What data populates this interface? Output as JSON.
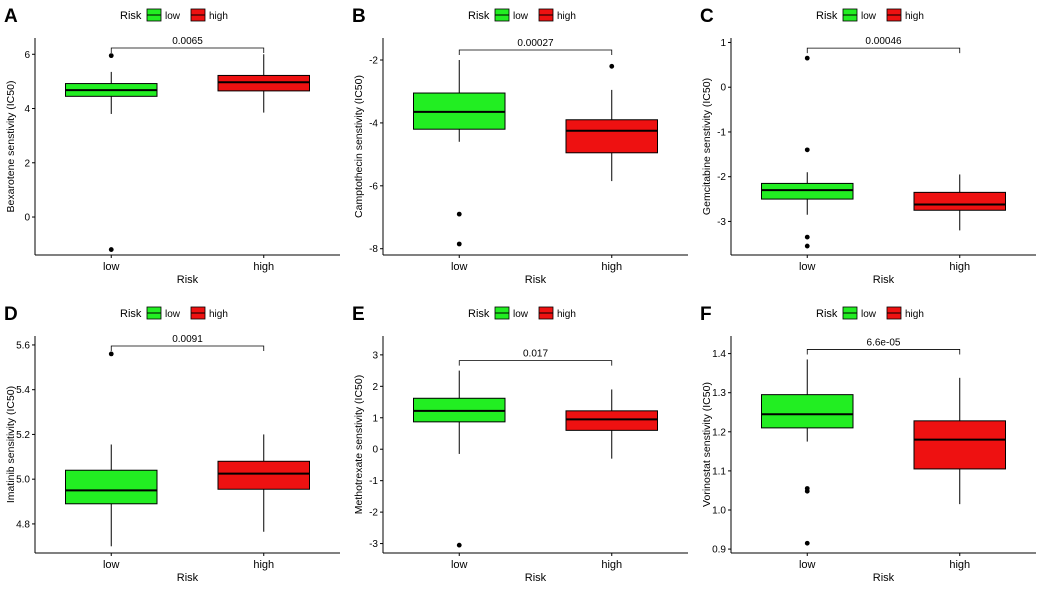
{
  "figure": {
    "legend_title": "Risk"
  },
  "colors": {
    "low": "#22ee22",
    "high": "#ee1111",
    "ink": "#000000"
  },
  "chart_data": [
    {
      "type": "box",
      "panel_label": "A",
      "ylabel": "Bexarotene senstivity (IC50)",
      "xlabel": "Risk",
      "categories": [
        "low",
        "high"
      ],
      "legend": [
        "low",
        "high"
      ],
      "ylim": [
        -1.4,
        6.6
      ],
      "yticks": [
        0,
        2,
        4,
        6
      ],
      "ytick_labels": [
        "0",
        "2",
        "4",
        "6"
      ],
      "p_value": "0.0065",
      "boxes": [
        {
          "name": "low",
          "whisker_low": 3.8,
          "q1": 4.45,
          "median": 4.68,
          "q3": 4.92,
          "whisker_high": 5.35,
          "outliers": [
            5.95,
            -1.2
          ]
        },
        {
          "name": "high",
          "whisker_low": 3.85,
          "q1": 4.65,
          "median": 4.97,
          "q3": 5.22,
          "whisker_high": 6.0,
          "outliers": []
        }
      ]
    },
    {
      "type": "box",
      "panel_label": "B",
      "ylabel": "Camptothecin senstivity (IC50)",
      "xlabel": "Risk",
      "categories": [
        "low",
        "high"
      ],
      "legend": [
        "low",
        "high"
      ],
      "ylim": [
        -8.2,
        -1.3
      ],
      "yticks": [
        -8,
        -6,
        -4,
        -2
      ],
      "ytick_labels": [
        "-8",
        "-6",
        "-4",
        "-2"
      ],
      "p_value": "0.00027",
      "boxes": [
        {
          "name": "low",
          "whisker_low": -4.6,
          "q1": -4.2,
          "median": -3.65,
          "q3": -3.05,
          "whisker_high": -2.0,
          "outliers": [
            -6.9,
            -7.85
          ]
        },
        {
          "name": "high",
          "whisker_low": -5.85,
          "q1": -4.95,
          "median": -4.25,
          "q3": -3.9,
          "whisker_high": -2.95,
          "outliers": [
            -2.2
          ]
        }
      ]
    },
    {
      "type": "box",
      "panel_label": "C",
      "ylabel": "Gemcitabine senstivity (IC50)",
      "xlabel": "Risk",
      "categories": [
        "low",
        "high"
      ],
      "legend": [
        "low",
        "high"
      ],
      "ylim": [
        -3.75,
        1.1
      ],
      "yticks": [
        -3,
        -2,
        -1,
        0,
        1
      ],
      "ytick_labels": [
        "-3",
        "-2",
        "-1",
        "0",
        "1"
      ],
      "p_value": "0.00046",
      "boxes": [
        {
          "name": "low",
          "whisker_low": -2.85,
          "q1": -2.5,
          "median": -2.3,
          "q3": -2.15,
          "whisker_high": -1.9,
          "outliers": [
            0.65,
            -1.4,
            -3.35,
            -3.55
          ]
        },
        {
          "name": "high",
          "whisker_low": -3.2,
          "q1": -2.75,
          "median": -2.62,
          "q3": -2.35,
          "whisker_high": -1.95,
          "outliers": []
        }
      ]
    },
    {
      "type": "box",
      "panel_label": "D",
      "ylabel": "Imatinib sensitivity (IC50)",
      "xlabel": "Risk",
      "categories": [
        "low",
        "high"
      ],
      "legend": [
        "low",
        "high"
      ],
      "ylim": [
        4.67,
        5.64
      ],
      "yticks": [
        4.8,
        5.0,
        5.2,
        5.4,
        5.6
      ],
      "ytick_labels": [
        "4.8",
        "5.0",
        "5.2",
        "5.4",
        "5.6"
      ],
      "p_value": "0.0091",
      "boxes": [
        {
          "name": "low",
          "whisker_low": 4.7,
          "q1": 4.89,
          "median": 4.95,
          "q3": 5.04,
          "whisker_high": 5.155,
          "outliers": [
            5.56
          ]
        },
        {
          "name": "high",
          "whisker_low": 4.765,
          "q1": 4.955,
          "median": 5.025,
          "q3": 5.08,
          "whisker_high": 5.2,
          "outliers": []
        }
      ]
    },
    {
      "type": "box",
      "panel_label": "E",
      "ylabel": "Methotrexate senstivity (IC50)",
      "xlabel": "Risk",
      "categories": [
        "low",
        "high"
      ],
      "legend": [
        "low",
        "high"
      ],
      "ylim": [
        -3.3,
        3.6
      ],
      "yticks": [
        -3,
        -2,
        -1,
        0,
        1,
        2,
        3
      ],
      "ytick_labels": [
        "-3",
        "-2",
        "-1",
        "0",
        "1",
        "2",
        "3"
      ],
      "p_value": "0.017",
      "boxes": [
        {
          "name": "low",
          "whisker_low": -0.15,
          "q1": 0.87,
          "median": 1.22,
          "q3": 1.62,
          "whisker_high": 2.5,
          "outliers": [
            -3.05
          ]
        },
        {
          "name": "high",
          "whisker_low": -0.3,
          "q1": 0.6,
          "median": 0.95,
          "q3": 1.22,
          "whisker_high": 1.9,
          "outliers": []
        }
      ]
    },
    {
      "type": "box",
      "panel_label": "F",
      "ylabel": "Vorinostat senstivity (IC50)",
      "xlabel": "Risk",
      "categories": [
        "low",
        "high"
      ],
      "legend": [
        "low",
        "high"
      ],
      "ylim": [
        0.89,
        1.445
      ],
      "yticks": [
        0.9,
        1.0,
        1.1,
        1.2,
        1.3,
        1.4
      ],
      "ytick_labels": [
        "0.9",
        "1.0",
        "1.1",
        "1.2",
        "1.3",
        "1.4"
      ],
      "p_value": "6.6e-05",
      "boxes": [
        {
          "name": "low",
          "whisker_low": 1.175,
          "q1": 1.21,
          "median": 1.245,
          "q3": 1.295,
          "whisker_high": 1.385,
          "outliers": [
            1.055,
            1.048,
            0.915
          ]
        },
        {
          "name": "high",
          "whisker_low": 1.015,
          "q1": 1.105,
          "median": 1.18,
          "q3": 1.228,
          "whisker_high": 1.338,
          "outliers": []
        }
      ]
    }
  ]
}
